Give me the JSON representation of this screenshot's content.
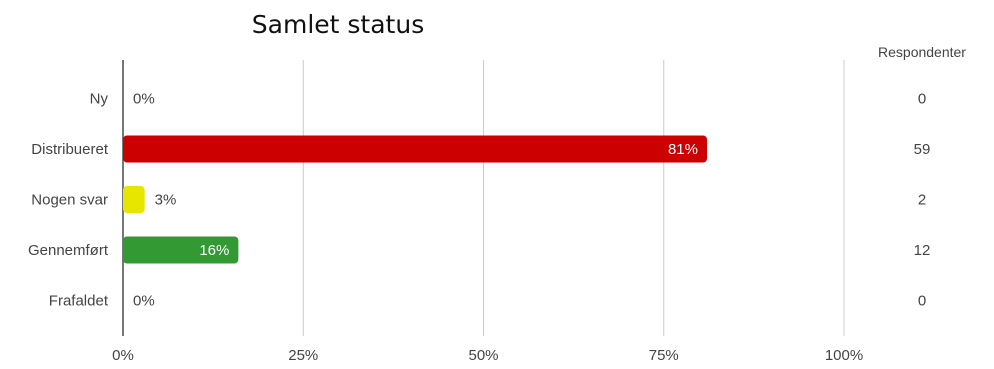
{
  "chart_data": {
    "type": "bar",
    "orientation": "horizontal",
    "title": "Samlet status",
    "categories": [
      "Ny",
      "Distribueret",
      "Nogen svar",
      "Gennemført",
      "Frafaldet"
    ],
    "values": [
      0,
      81,
      3,
      16,
      0
    ],
    "value_labels": [
      "0%",
      "81%",
      "3%",
      "16%",
      "0%"
    ],
    "colors": [
      "#cc0000",
      "#cc0000",
      "#e6e600",
      "#339933",
      "#cc0000"
    ],
    "xlim": [
      0,
      100
    ],
    "x_ticks": [
      0,
      25,
      50,
      75,
      100
    ],
    "x_tick_labels": [
      "0%",
      "25%",
      "50%",
      "75%",
      "100%"
    ],
    "grid": true,
    "respondents_header": "Respondenter",
    "respondents": [
      "0",
      "59",
      "2",
      "12",
      "0"
    ]
  }
}
